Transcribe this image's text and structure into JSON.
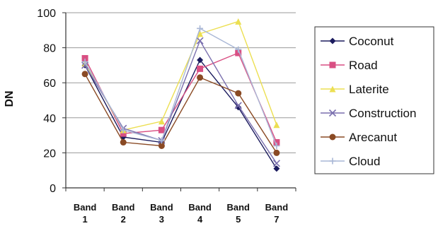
{
  "chart_data": {
    "type": "line",
    "title": "",
    "xlabel": "",
    "ylabel": "DN",
    "categories": [
      [
        "Band",
        "1"
      ],
      [
        "Band",
        "2"
      ],
      [
        "Band",
        "3"
      ],
      [
        "Band",
        "4"
      ],
      [
        "Band",
        "5"
      ],
      [
        "Band",
        "7"
      ]
    ],
    "yticks": [
      "0",
      "20",
      "40",
      "60",
      "80",
      "100"
    ],
    "ylim": [
      0,
      100
    ],
    "grid": true,
    "legend_position": "right",
    "series": [
      {
        "name": "Coconut",
        "color": "#1b1b5e",
        "marker": "diamond",
        "values": [
          70,
          29,
          26,
          73,
          46,
          11
        ]
      },
      {
        "name": "Road",
        "color": "#d94f83",
        "marker": "square",
        "values": [
          74,
          31,
          33,
          68,
          77,
          26
        ]
      },
      {
        "name": "Laterite",
        "color": "#ecdf52",
        "marker": "triangle",
        "values": [
          71,
          33,
          38,
          88,
          95,
          36
        ]
      },
      {
        "name": "Construction",
        "color": "#7a6fae",
        "marker": "x",
        "values": [
          70,
          34,
          27,
          84,
          47,
          14
        ]
      },
      {
        "name": "Arecanut",
        "color": "#8a4a24",
        "marker": "circle",
        "values": [
          65,
          26,
          24,
          63,
          54,
          20
        ]
      },
      {
        "name": "Cloud",
        "color": "#a9b7d6",
        "marker": "plus",
        "values": [
          72,
          33,
          27,
          91,
          79,
          24
        ]
      }
    ]
  }
}
